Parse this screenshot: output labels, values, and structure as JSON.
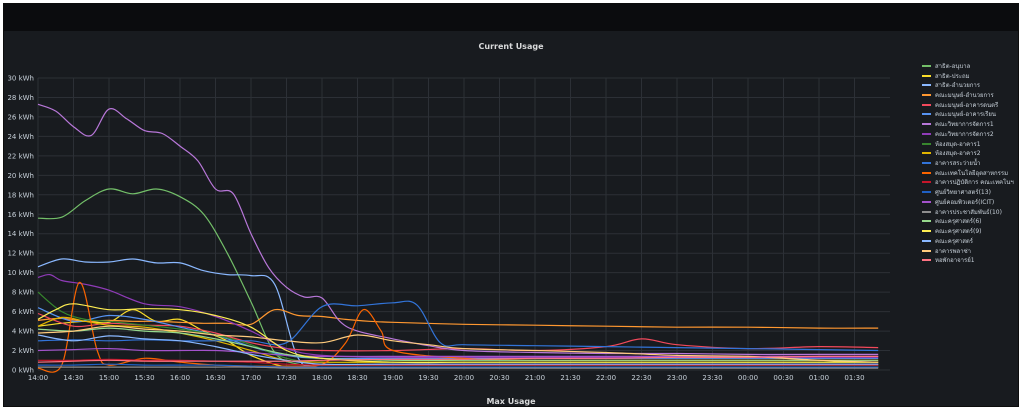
{
  "panel": {
    "title": "Current Usage",
    "footer_title": "Max Usage"
  },
  "colors": {
    "background": "#181b1f",
    "grid": "#2c3036",
    "text": "#c7d0d9"
  },
  "chart_data": {
    "type": "line",
    "title": "Current Usage",
    "xlabel": "",
    "ylabel": "",
    "ylim": [
      0,
      30
    ],
    "grid": true,
    "legend_position": "right",
    "y_ticks": [
      "0 kWh",
      "2 kWh",
      "4 kWh",
      "6 kWh",
      "8 kWh",
      "10 kWh",
      "12 kWh",
      "14 kWh",
      "16 kWh",
      "18 kWh",
      "20 kWh",
      "22 kWh",
      "24 kWh",
      "26 kWh",
      "28 kWh",
      "30 kWh"
    ],
    "x_ticks": [
      "14:00",
      "14:30",
      "15:00",
      "15:30",
      "16:00",
      "16:30",
      "17:00",
      "17:30",
      "18:00",
      "18:30",
      "19:00",
      "19:30",
      "20:00",
      "20:30",
      "21:00",
      "21:30",
      "22:00",
      "22:30",
      "23:00",
      "23:30",
      "00:00",
      "00:30",
      "01:00",
      "01:30"
    ],
    "series": [
      {
        "name": "สาธิต-อนุบาล",
        "color": "#73bf69",
        "x": [
          "14:00",
          "14:20",
          "14:40",
          "15:00",
          "15:20",
          "15:40",
          "16:00",
          "16:20",
          "16:40",
          "17:00",
          "17:20",
          "17:40",
          "18:00",
          "19:00",
          "20:00",
          "21:00",
          "22:00",
          "23:00",
          "00:00",
          "01:00",
          "01:50"
        ],
        "values": [
          15.6,
          15.7,
          17.4,
          18.6,
          18.1,
          18.6,
          17.8,
          16.0,
          12.0,
          7.0,
          1.8,
          0.6,
          0.5,
          0.5,
          0.5,
          0.5,
          0.5,
          0.5,
          0.5,
          0.5,
          0.5
        ]
      },
      {
        "name": "สาธิต-ประถม",
        "color": "#fade2a",
        "x": [
          "14:00",
          "14:20",
          "14:40",
          "15:00",
          "15:20",
          "15:40",
          "16:00",
          "16:20",
          "16:40",
          "17:00",
          "17:30",
          "18:00",
          "19:00",
          "20:00",
          "21:00",
          "22:00",
          "23:00",
          "00:00",
          "01:00",
          "01:50"
        ],
        "values": [
          4.5,
          4.8,
          5.0,
          4.9,
          6.2,
          5.0,
          5.2,
          4.0,
          3.0,
          1.5,
          0.3,
          0.3,
          0.3,
          0.3,
          0.3,
          0.3,
          0.3,
          0.3,
          0.3,
          0.3
        ]
      },
      {
        "name": "สาธิต-อำนวยการ",
        "color": "#8ab8ff",
        "x": [
          "14:00",
          "14:20",
          "14:40",
          "15:00",
          "15:20",
          "15:40",
          "16:00",
          "16:20",
          "16:40",
          "17:00",
          "17:20",
          "17:40",
          "18:00",
          "19:00",
          "20:00",
          "21:00",
          "22:00",
          "23:00",
          "00:00",
          "01:00",
          "01:50"
        ],
        "values": [
          10.6,
          11.4,
          11.1,
          11.1,
          11.4,
          11.0,
          11.0,
          10.2,
          9.8,
          9.7,
          8.8,
          1.2,
          0.6,
          0.6,
          0.6,
          0.6,
          0.6,
          0.6,
          0.6,
          0.6,
          0.6
        ]
      },
      {
        "name": "คณะมนุษย์-อำนวยการ",
        "color": "#ff9830",
        "x": [
          "14:00",
          "14:20",
          "14:40",
          "15:00",
          "15:20",
          "15:40",
          "16:00",
          "16:20",
          "16:40",
          "17:00",
          "17:20",
          "17:40",
          "18:00",
          "18:20",
          "18:40",
          "19:00",
          "20:00",
          "21:00",
          "22:00",
          "23:00",
          "00:00",
          "01:00",
          "01:50"
        ],
        "values": [
          5.1,
          5.3,
          5.0,
          5.1,
          5.0,
          5.0,
          4.9,
          4.8,
          4.8,
          4.7,
          6.2,
          5.6,
          5.5,
          5.2,
          5.0,
          4.9,
          4.7,
          4.6,
          4.5,
          4.4,
          4.4,
          4.3,
          4.3
        ]
      },
      {
        "name": "คณะมนุษย์-อาคารดนตรี",
        "color": "#f2495c",
        "x": [
          "14:00",
          "14:30",
          "15:00",
          "15:30",
          "16:00",
          "16:30",
          "17:00",
          "17:30",
          "18:00",
          "19:00",
          "20:00",
          "21:00",
          "22:00",
          "22:30",
          "23:00",
          "00:00",
          "01:00",
          "01:50"
        ],
        "values": [
          5.8,
          4.5,
          4.8,
          4.6,
          4.5,
          3.8,
          2.8,
          2.2,
          2.0,
          2.0,
          2.2,
          2.0,
          2.4,
          3.2,
          2.6,
          2.2,
          2.4,
          2.3
        ]
      },
      {
        "name": "คณะมนุษย์-อาคารเรียน",
        "color": "#5794f2",
        "x": [
          "14:00",
          "14:30",
          "15:00",
          "15:30",
          "16:00",
          "16:30",
          "17:00",
          "17:30",
          "18:00",
          "19:00",
          "20:00",
          "21:00",
          "22:00",
          "23:00",
          "00:00",
          "01:00",
          "01:50"
        ],
        "values": [
          6.4,
          5.0,
          5.6,
          5.2,
          4.4,
          3.6,
          2.4,
          1.5,
          1.2,
          1.2,
          1.2,
          1.2,
          1.2,
          1.2,
          1.2,
          1.2,
          1.2
        ]
      },
      {
        "name": "คณะวิทยาการจัดการ1",
        "color": "#b877d9",
        "x": [
          "14:00",
          "14:15",
          "14:30",
          "14:45",
          "15:00",
          "15:15",
          "15:30",
          "15:45",
          "16:00",
          "16:15",
          "16:30",
          "16:45",
          "17:00",
          "17:15",
          "17:30",
          "17:45",
          "18:00",
          "18:15",
          "18:30",
          "19:00",
          "19:30",
          "20:00",
          "21:00",
          "22:00",
          "23:00",
          "00:00",
          "01:00",
          "01:50"
        ],
        "values": [
          27.3,
          26.6,
          25.0,
          24.1,
          26.8,
          25.8,
          24.6,
          24.3,
          23.0,
          21.5,
          18.6,
          18.1,
          14.0,
          10.5,
          8.5,
          7.5,
          7.4,
          5.0,
          4.0,
          3.2,
          2.5,
          2.0,
          1.8,
          1.7,
          1.7,
          1.6,
          1.6,
          1.6
        ]
      },
      {
        "name": "คณะวิทยาการจัดการ2",
        "color": "#8f3bb8",
        "x": [
          "14:00",
          "14:10",
          "14:20",
          "14:40",
          "15:00",
          "15:30",
          "16:00",
          "16:30",
          "17:00",
          "17:30",
          "18:00",
          "19:00",
          "20:00",
          "21:00",
          "22:00",
          "23:00",
          "00:00",
          "01:00",
          "01:50"
        ],
        "values": [
          9.5,
          9.8,
          9.2,
          8.8,
          8.2,
          6.8,
          6.5,
          5.5,
          4.0,
          2.2,
          1.5,
          1.3,
          1.3,
          1.3,
          1.3,
          1.3,
          1.3,
          1.3,
          1.3
        ]
      },
      {
        "name": "ห้องสมุด-อาคาร1",
        "color": "#37872d",
        "x": [
          "14:00",
          "14:20",
          "14:40",
          "15:00",
          "15:30",
          "16:00",
          "16:30",
          "17:00",
          "17:30",
          "18:00",
          "19:00",
          "20:00",
          "21:00",
          "22:00",
          "23:00",
          "00:00",
          "01:00",
          "01:50"
        ],
        "values": [
          8.0,
          6.0,
          5.2,
          5.0,
          4.6,
          4.2,
          3.6,
          2.6,
          1.2,
          0.8,
          0.8,
          0.8,
          0.8,
          0.8,
          0.8,
          0.8,
          0.8,
          0.8
        ]
      },
      {
        "name": "ห้องสมุด-อาคาร2",
        "color": "#e0b400",
        "x": [
          "14:00",
          "14:20",
          "14:40",
          "15:00",
          "15:30",
          "16:00",
          "16:30",
          "17:00",
          "17:30",
          "18:00",
          "19:00",
          "20:00",
          "21:00",
          "22:00",
          "23:00",
          "00:00",
          "01:00",
          "01:50"
        ],
        "values": [
          4.5,
          5.4,
          5.0,
          4.6,
          4.4,
          3.8,
          3.0,
          2.0,
          1.0,
          0.8,
          0.8,
          0.8,
          0.8,
          0.8,
          0.8,
          0.8,
          0.8,
          0.8
        ]
      },
      {
        "name": "อาคารสระว่ายน้ำ",
        "color": "#3274d9",
        "x": [
          "14:00",
          "14:30",
          "15:00",
          "15:30",
          "16:00",
          "16:30",
          "17:00",
          "17:30",
          "18:00",
          "18:30",
          "19:00",
          "19:20",
          "19:40",
          "20:00",
          "21:00",
          "22:00",
          "23:00",
          "00:00",
          "01:00",
          "01:50"
        ],
        "values": [
          3.0,
          3.1,
          3.0,
          3.1,
          3.0,
          3.0,
          3.0,
          2.8,
          6.5,
          6.6,
          6.9,
          6.7,
          2.8,
          2.6,
          2.5,
          2.4,
          2.3,
          2.2,
          2.1,
          2.0
        ]
      },
      {
        "name": "คณะเทคโนโลยีอุตสาหกรรม",
        "color": "#fa6400",
        "x": [
          "14:00",
          "14:20",
          "14:35",
          "14:50",
          "15:00",
          "15:30",
          "16:00",
          "16:30",
          "17:00",
          "17:30",
          "18:00",
          "18:20",
          "18:35",
          "18:50",
          "19:00",
          "20:00",
          "21:00",
          "22:00",
          "23:00",
          "00:00",
          "01:00",
          "01:50"
        ],
        "values": [
          0.2,
          0.5,
          9.0,
          2.0,
          0.5,
          1.2,
          0.8,
          0.5,
          0.4,
          0.4,
          0.6,
          2.8,
          6.2,
          4.0,
          2.0,
          1.2,
          1.0,
          1.0,
          1.0,
          1.0,
          1.0,
          1.0
        ]
      },
      {
        "name": "อาคารปฏิบัติการ คณะเทคโนฯ",
        "color": "#c4162a",
        "x": [
          "14:00",
          "14:30",
          "15:00",
          "15:30",
          "16:00",
          "16:30",
          "17:00",
          "17:30",
          "18:00",
          "19:00",
          "20:00",
          "21:00",
          "22:00",
          "23:00",
          "00:00",
          "01:00",
          "01:50"
        ],
        "values": [
          1.0,
          1.0,
          1.1,
          1.0,
          1.0,
          0.9,
          0.8,
          0.6,
          0.5,
          0.5,
          0.5,
          0.5,
          0.5,
          0.5,
          0.5,
          0.5,
          0.5
        ]
      },
      {
        "name": "ศูนย์วิทยาศาสตร์(13)",
        "color": "#1f60c4",
        "x": [
          "14:00",
          "14:30",
          "15:00",
          "15:30",
          "16:00",
          "16:30",
          "17:00",
          "17:30",
          "18:00",
          "19:00",
          "20:00",
          "21:00",
          "22:00",
          "23:00",
          "00:00",
          "01:00",
          "01:50"
        ],
        "values": [
          0.5,
          0.5,
          0.6,
          0.5,
          0.5,
          0.5,
          0.4,
          0.3,
          0.3,
          0.3,
          0.3,
          0.3,
          0.3,
          0.3,
          0.3,
          0.3,
          0.3
        ]
      },
      {
        "name": "ศูนย์คอมพิวเตอร์(ICIT)",
        "color": "#a352cc",
        "x": [
          "14:00",
          "14:30",
          "15:00",
          "15:30",
          "16:00",
          "16:30",
          "17:00",
          "17:30",
          "18:00",
          "19:00",
          "20:00",
          "21:00",
          "22:00",
          "23:00",
          "00:00",
          "01:00",
          "01:50"
        ],
        "values": [
          2.0,
          2.1,
          2.2,
          2.0,
          2.0,
          2.0,
          1.8,
          1.5,
          1.4,
          1.4,
          1.4,
          1.4,
          1.4,
          1.4,
          1.4,
          1.4,
          1.4
        ]
      },
      {
        "name": "อาคารประชาสัมพันธ์(10)",
        "color": "#8e8e8e",
        "x": [
          "14:00",
          "14:30",
          "15:00",
          "15:30",
          "16:00",
          "16:30",
          "17:00",
          "17:30",
          "18:00",
          "19:00",
          "20:00",
          "21:00",
          "22:00",
          "23:00",
          "00:00",
          "01:00",
          "01:50"
        ],
        "values": [
          0.3,
          0.3,
          0.3,
          0.3,
          0.3,
          0.3,
          0.3,
          0.2,
          0.2,
          0.2,
          0.2,
          0.2,
          0.2,
          0.2,
          0.2,
          0.2,
          0.2
        ]
      },
      {
        "name": "คณะครุศาสตร์(6)",
        "color": "#96d98d",
        "x": [
          "14:00",
          "14:30",
          "15:00",
          "15:30",
          "16:00",
          "16:30",
          "17:00",
          "17:30",
          "18:00",
          "19:00",
          "20:00",
          "21:00",
          "22:00",
          "23:00",
          "00:00",
          "01:00",
          "01:50"
        ],
        "values": [
          4.2,
          4.0,
          4.3,
          4.0,
          3.8,
          3.2,
          2.4,
          1.6,
          1.2,
          1.0,
          1.0,
          1.0,
          1.0,
          1.0,
          1.0,
          1.0,
          1.0
        ]
      },
      {
        "name": "คณะครุศาสตร์(9)",
        "color": "#ffee52",
        "x": [
          "14:00",
          "14:15",
          "14:30",
          "15:00",
          "15:30",
          "16:00",
          "16:30",
          "17:00",
          "17:30",
          "18:00",
          "19:00",
          "20:00",
          "21:00",
          "22:00",
          "23:00",
          "00:00",
          "01:00",
          "01:50"
        ],
        "values": [
          5.2,
          6.2,
          6.8,
          6.2,
          6.3,
          6.2,
          5.6,
          4.4,
          2.0,
          1.2,
          0.8,
          0.8,
          0.8,
          0.8,
          0.8,
          0.8,
          0.8,
          0.8
        ]
      },
      {
        "name": "คณะครุศาสตร์",
        "color": "#8ab8ff",
        "x": [
          "14:00",
          "14:30",
          "15:00",
          "15:30",
          "16:00",
          "16:30",
          "17:00",
          "17:30",
          "18:00",
          "19:00",
          "20:00",
          "21:00",
          "22:00",
          "23:00",
          "00:00",
          "01:00",
          "01:50"
        ],
        "values": [
          3.6,
          3.0,
          3.5,
          3.2,
          3.0,
          2.4,
          1.6,
          1.0,
          0.6,
          0.6,
          0.6,
          0.6,
          0.6,
          0.6,
          0.6,
          0.6,
          0.6
        ]
      },
      {
        "name": "อาคารพลาซ่า",
        "color": "#ffcb7d",
        "x": [
          "14:00",
          "14:30",
          "15:00",
          "15:30",
          "16:00",
          "16:30",
          "17:00",
          "17:30",
          "18:00",
          "18:30",
          "19:00",
          "19:30",
          "20:00",
          "21:00",
          "22:00",
          "23:00",
          "00:00",
          "01:00",
          "01:50"
        ],
        "values": [
          3.8,
          4.0,
          4.5,
          4.2,
          4.0,
          3.6,
          3.4,
          3.0,
          2.8,
          3.6,
          3.0,
          2.6,
          2.2,
          2.0,
          1.8,
          1.5,
          1.4,
          1.0,
          0.8
        ]
      },
      {
        "name": "หอพักอาจารย์1",
        "color": "#ff7383",
        "x": [
          "14:00",
          "14:30",
          "15:00",
          "15:30",
          "16:00",
          "16:30",
          "17:00",
          "17:30",
          "18:00",
          "19:00",
          "20:00",
          "21:00",
          "22:00",
          "23:00",
          "00:00",
          "01:00",
          "01:50"
        ],
        "values": [
          0.8,
          0.9,
          1.0,
          0.9,
          0.9,
          0.9,
          0.9,
          0.9,
          1.0,
          1.1,
          1.1,
          1.2,
          1.2,
          1.3,
          1.3,
          1.4,
          1.4
        ]
      }
    ]
  }
}
